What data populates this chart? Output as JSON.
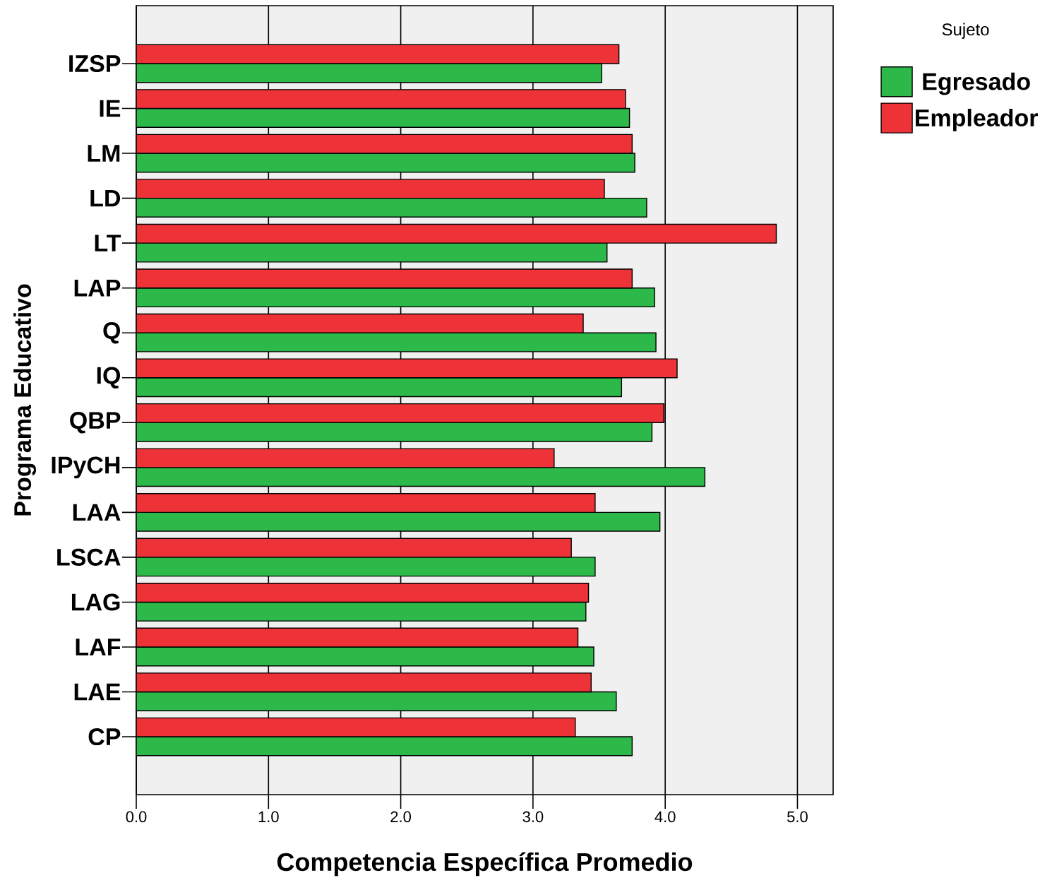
{
  "chart_data": {
    "type": "bar",
    "orientation": "horizontal",
    "xlabel": "Competencia Específica Promedio",
    "ylabel": "Programa Educativo",
    "legend_title": "Sujeto",
    "legend": "top right",
    "grid": "x",
    "categories": [
      "IZSP",
      "IE",
      "LM",
      "LD",
      "LT",
      "LAP",
      "Q",
      "IQ",
      "QBP",
      "IPyCH",
      "LAA",
      "LSCA",
      "LAG",
      "LAF",
      "LAE",
      "CP"
    ],
    "series": [
      {
        "name": "Egresado",
        "color": "#2db84a",
        "values": [
          3.52,
          3.73,
          3.77,
          3.86,
          3.56,
          3.92,
          3.93,
          3.67,
          3.9,
          4.3,
          3.96,
          3.47,
          3.4,
          3.46,
          3.63,
          3.75
        ]
      },
      {
        "name": "Empleador",
        "color": "#ee3338",
        "values": [
          3.65,
          3.7,
          3.75,
          3.54,
          4.84,
          3.75,
          3.38,
          4.09,
          3.99,
          3.16,
          3.47,
          3.29,
          3.42,
          3.34,
          3.44,
          3.32
        ]
      }
    ],
    "xlim": [
      0,
      5.27
    ],
    "xticks": [
      {
        "value": 0,
        "label": "0.0"
      },
      {
        "value": 1,
        "label": "1.0"
      },
      {
        "value": 2,
        "label": "2.0"
      },
      {
        "value": 3,
        "label": "3.0"
      },
      {
        "value": 4,
        "label": "4.0"
      },
      {
        "value": 5,
        "label": "5.0"
      }
    ]
  }
}
